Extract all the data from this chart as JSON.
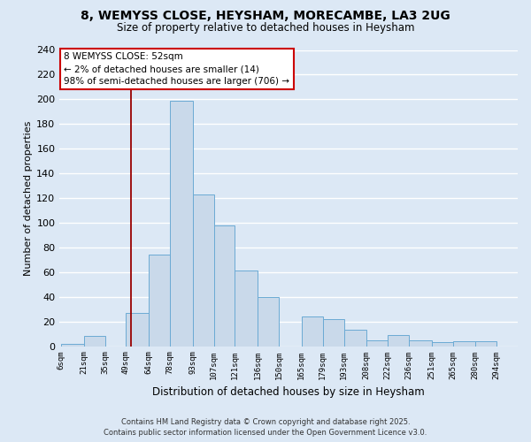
{
  "title_line1": "8, WEMYSS CLOSE, HEYSHAM, MORECAMBE, LA3 2UG",
  "title_line2": "Size of property relative to detached houses in Heysham",
  "xlabel": "Distribution of detached houses by size in Heysham",
  "ylabel": "Number of detached properties",
  "bar_labels": [
    "6sqm",
    "21sqm",
    "35sqm",
    "49sqm",
    "64sqm",
    "78sqm",
    "93sqm",
    "107sqm",
    "121sqm",
    "136sqm",
    "150sqm",
    "165sqm",
    "179sqm",
    "193sqm",
    "208sqm",
    "222sqm",
    "236sqm",
    "251sqm",
    "265sqm",
    "280sqm",
    "294sqm"
  ],
  "bar_values": [
    2,
    8,
    0,
    27,
    74,
    199,
    123,
    98,
    61,
    40,
    0,
    24,
    22,
    13,
    5,
    9,
    5,
    3,
    4,
    4
  ],
  "bin_edges": [
    6,
    21,
    35,
    49,
    64,
    78,
    93,
    107,
    121,
    136,
    150,
    165,
    179,
    193,
    208,
    222,
    236,
    251,
    265,
    280,
    294
  ],
  "bar_color": "#c9d9ea",
  "bar_edgecolor": "#6baad4",
  "property_line_x": 52,
  "vline_color": "#990000",
  "annotation_text": "8 WEMYSS CLOSE: 52sqm\n← 2% of detached houses are smaller (14)\n98% of semi-detached houses are larger (706) →",
  "annotation_box_facecolor": "#ffffff",
  "annotation_box_edgecolor": "#cc0000",
  "ylim": [
    0,
    240
  ],
  "yticks": [
    0,
    20,
    40,
    60,
    80,
    100,
    120,
    140,
    160,
    180,
    200,
    220,
    240
  ],
  "bg_color": "#dce8f5",
  "grid_color": "#ffffff",
  "footer_line1": "Contains HM Land Registry data © Crown copyright and database right 2025.",
  "footer_line2": "Contains public sector information licensed under the Open Government Licence v3.0."
}
